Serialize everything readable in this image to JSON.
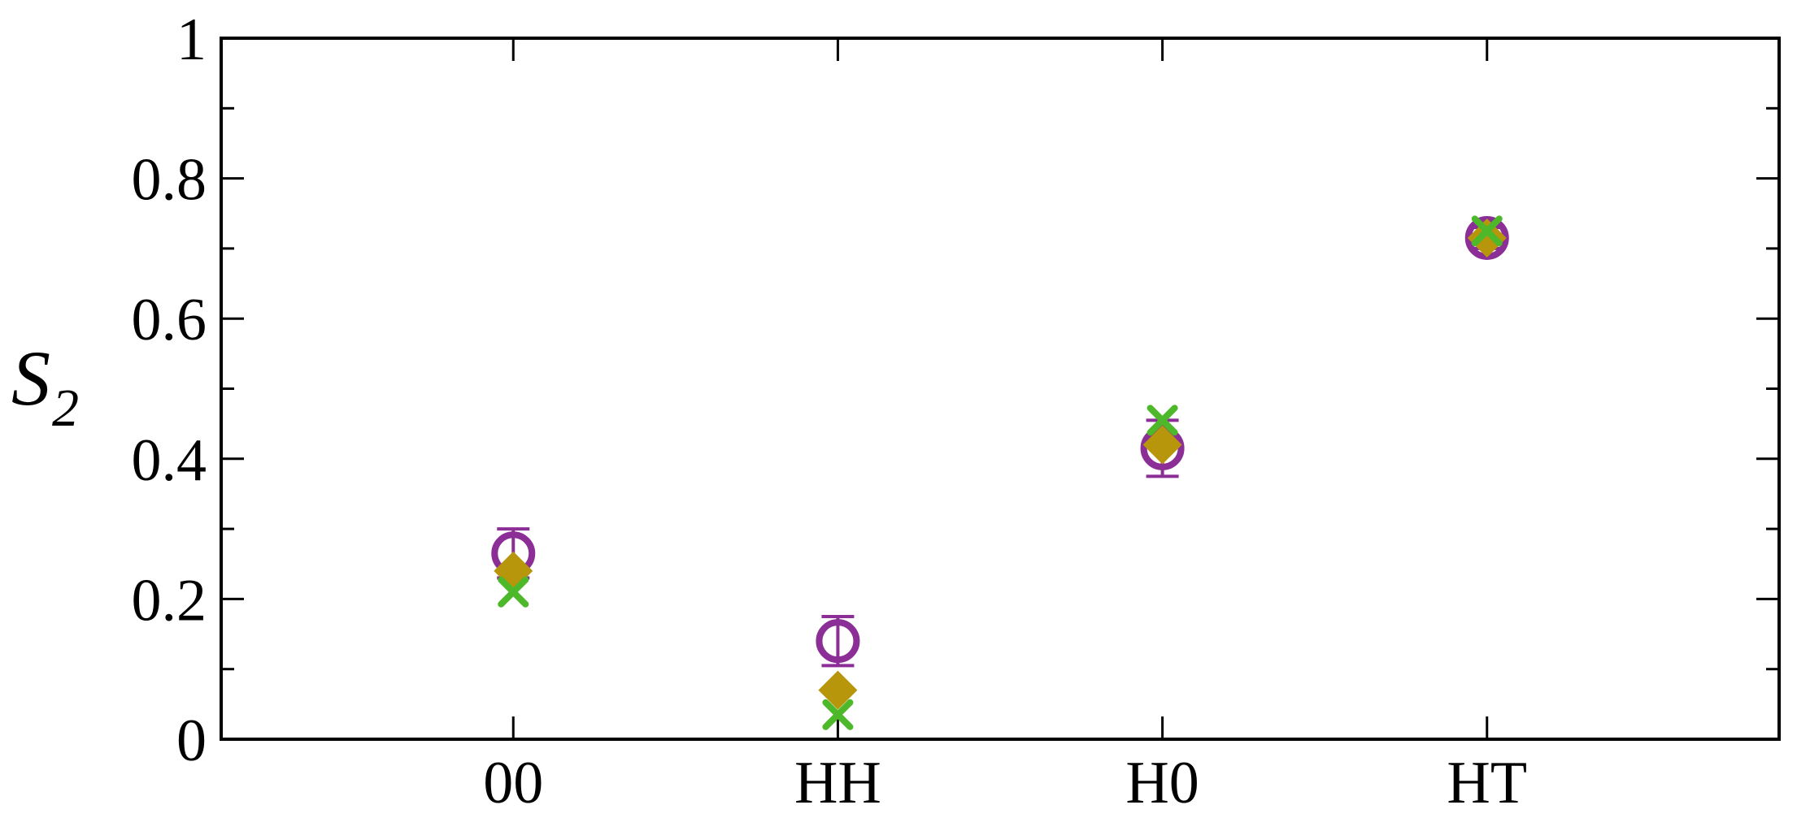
{
  "chart_data": {
    "type": "scatter",
    "title": "",
    "xlabel": "",
    "ylabel": "S",
    "ylabel_subscript": "2",
    "categories": [
      "00",
      "HH",
      "H0",
      "HT"
    ],
    "xlim": [
      -0.9,
      3.9
    ],
    "ylim": [
      0,
      1
    ],
    "yticks": [
      0,
      0.2,
      0.4,
      0.6,
      0.8,
      1
    ],
    "ytick_labels": [
      "0",
      "0.2",
      "0.4",
      "0.6",
      "0.8",
      "1"
    ],
    "grid": false,
    "series": [
      {
        "marker": "open-circle",
        "color": "#8B2E96",
        "values": [
          0.265,
          0.14,
          0.415,
          0.715
        ],
        "error": [
          0.035,
          0.035,
          0.04,
          0.015
        ]
      },
      {
        "marker": "diamond",
        "color": "#B8960C",
        "values": [
          0.24,
          0.07,
          0.42,
          0.715
        ],
        "error": [
          0,
          0,
          0,
          0
        ]
      },
      {
        "marker": "x",
        "color": "#4CB82A",
        "values": [
          0.21,
          0.035,
          0.455,
          0.725
        ],
        "error": [
          0,
          0,
          0,
          0
        ]
      }
    ]
  }
}
